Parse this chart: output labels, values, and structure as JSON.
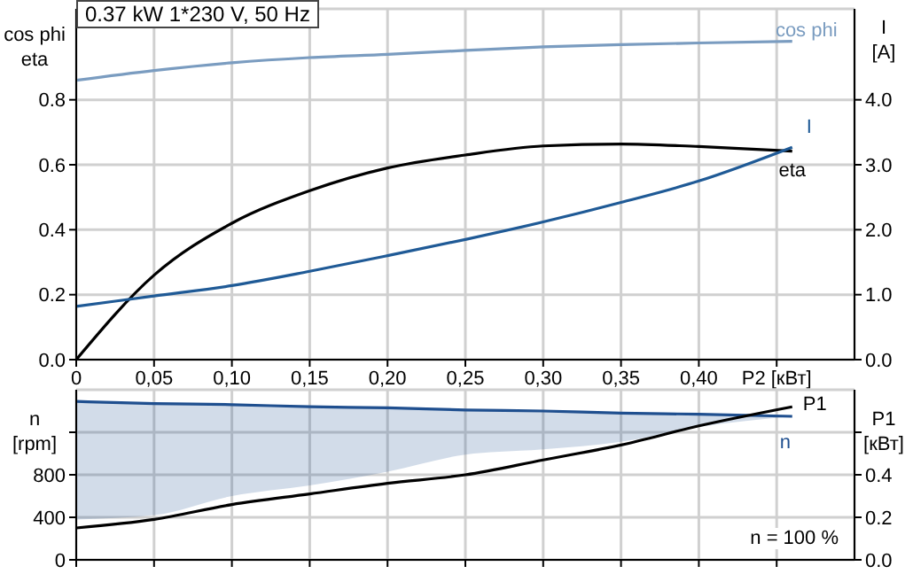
{
  "chart_data": [
    {
      "type": "line",
      "title": "0.37 kW   1*230 V, 50 Hz",
      "ylabel": "cos phi\neta",
      "y2label": "I\n[A]",
      "x": [
        0,
        0.05,
        0.1,
        0.15,
        0.2,
        0.25,
        0.3,
        0.35,
        0.4,
        0.46
      ],
      "xlim": [
        0,
        0.5
      ],
      "xticks": [
        {
          "value": 0,
          "label": "0"
        },
        {
          "value": 0.05,
          "label": "0,05"
        },
        {
          "value": 0.1,
          "label": "0,10"
        },
        {
          "value": 0.15,
          "label": "0,15"
        },
        {
          "value": 0.2,
          "label": "0,20"
        },
        {
          "value": 0.25,
          "label": "0,25"
        },
        {
          "value": 0.3,
          "label": "0,30"
        },
        {
          "value": 0.35,
          "label": "0,35"
        },
        {
          "value": 0.4,
          "label": "0,40"
        },
        {
          "value": 0.45,
          "label": "P2 [кВт]"
        }
      ],
      "ylim": [
        0,
        1.08
      ],
      "yticks": [
        {
          "value": 0,
          "label": "0.0"
        },
        0.2,
        0.4,
        0.6,
        0.8
      ],
      "y2lim": [
        0,
        5.4
      ],
      "y2ticks": [
        {
          "value": 0,
          "label": "0.0"
        },
        {
          "value": 1,
          "label": "1.0"
        },
        {
          "value": 2,
          "label": "2.0"
        },
        {
          "value": 3,
          "label": "3.0"
        },
        {
          "value": 4,
          "label": "4.0"
        }
      ],
      "grid": true,
      "marker": "none",
      "series": [
        {
          "name": "cos phi",
          "color": "#7a9cc0",
          "values": [
            0.86,
            0.89,
            0.914,
            0.93,
            0.94,
            0.952,
            0.963,
            0.97,
            0.975,
            0.98
          ]
        },
        {
          "name": "eta",
          "color": "#000000",
          "values": [
            0,
            0.26,
            0.42,
            0.52,
            0.59,
            0.63,
            0.658,
            0.664,
            0.656,
            0.642
          ]
        },
        {
          "name": "I",
          "color": "#1f5a96",
          "axis": "y2",
          "values": [
            0.82,
            0.98,
            1.14,
            1.36,
            1.6,
            1.85,
            2.12,
            2.42,
            2.75,
            3.27
          ]
        }
      ]
    },
    {
      "type": "line",
      "ylabel": "n\n[rpm]",
      "y2label": "P1\n[кВт]",
      "tick_labels": "y",
      "x": [
        0,
        0.05,
        0.1,
        0.15,
        0.2,
        0.25,
        0.3,
        0.35,
        0.4,
        0.46
      ],
      "xlim": [
        0,
        0.5
      ],
      "xticks": [
        0,
        0.05,
        0.1,
        0.15,
        0.2,
        0.25,
        0.3,
        0.35,
        0.4,
        0.45
      ],
      "ylim": [
        0,
        1600
      ],
      "yticks": [
        0,
        400,
        800,
        {
          "value": 1200,
          "label": null
        }
      ],
      "y2lim": [
        0,
        0.8
      ],
      "y2ticks": [
        {
          "value": 0,
          "label": "0.0"
        },
        0.2,
        0.4,
        {
          "value": 0.6,
          "label": null
        }
      ],
      "grid": true,
      "marker": "none",
      "annotations": [
        "n = 100 %"
      ],
      "series": [
        {
          "name": "n",
          "color": "#1f4f8f",
          "values": [
            1490,
            1470,
            1460,
            1440,
            1430,
            1410,
            1400,
            1380,
            1370,
            1350
          ],
          "lower": [
            380,
            420,
            600,
            700,
            830,
            990,
            1040,
            1110,
            1250,
            1350
          ],
          "upper": [
            1490,
            1470,
            1460,
            1440,
            1430,
            1410,
            1400,
            1380,
            1370,
            1350
          ]
        },
        {
          "name": "P1",
          "color": "#000000",
          "axis": "y2",
          "values": [
            0.15,
            0.19,
            0.26,
            0.31,
            0.36,
            0.4,
            0.47,
            0.54,
            0.63,
            0.72
          ]
        }
      ]
    }
  ]
}
